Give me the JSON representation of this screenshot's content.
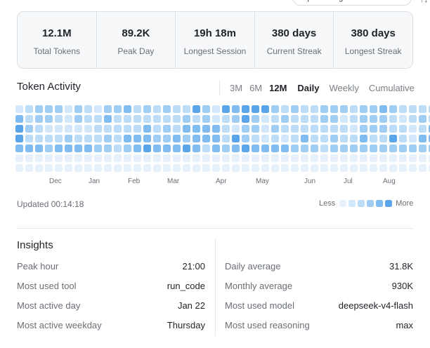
{
  "top": {
    "config_pill": "Open configuration file",
    "corner_glyph": "↑↓"
  },
  "stats": [
    {
      "value": "12.1M",
      "label": "Total Tokens"
    },
    {
      "value": "89.2K",
      "label": "Peak Day"
    },
    {
      "value": "19h 18m",
      "label": "Longest Session"
    },
    {
      "value": "380 days",
      "label": "Current Streak"
    },
    {
      "value": "380 days",
      "label": "Longest Streak"
    }
  ],
  "activity": {
    "title": "Token Activity",
    "ranges": [
      "3M",
      "6M",
      "12M"
    ],
    "active_range": "12M",
    "modes": [
      "Daily",
      "Weekly",
      "Cumulative"
    ],
    "active_mode": "Daily",
    "months": [
      "Dec",
      "Jan",
      "Feb",
      "Mar",
      "Apr",
      "May",
      "Jun",
      "Jul",
      "Aug"
    ],
    "updated": "Updated 00:14:18",
    "legend": {
      "less": "Less",
      "more": "More"
    },
    "palette": [
      "#e6f1fb",
      "#d2e7f9",
      "#bcdcf7",
      "#a0cdf4",
      "#81bcf0",
      "#5aa5ea"
    ],
    "levels": [
      "12333132133423232253154555323223332334322224",
      "42332132242222222323123531232223312333212323",
      "53211111222224232444421331322222221333221242",
      "52222322232444334344425321212422322422521444",
      "44434444332345444542434544443332333333333333",
      "00000000000000000000000000000000000000000000",
      "00000000000000000000000000000000000000000000"
    ]
  },
  "insights": {
    "title": "Insights",
    "left": [
      {
        "k": "Peak hour",
        "v": "21:00"
      },
      {
        "k": "Most used tool",
        "v": "run_code"
      },
      {
        "k": "Most active day",
        "v": "Jan 22"
      },
      {
        "k": "Most active weekday",
        "v": "Thursday"
      }
    ],
    "right": [
      {
        "k": "Daily average",
        "v": "31.8K"
      },
      {
        "k": "Monthly average",
        "v": "930K"
      },
      {
        "k": "Most used model",
        "v": "deepseek-v4-flash"
      },
      {
        "k": "Most used reasoning",
        "v": "max"
      }
    ]
  }
}
